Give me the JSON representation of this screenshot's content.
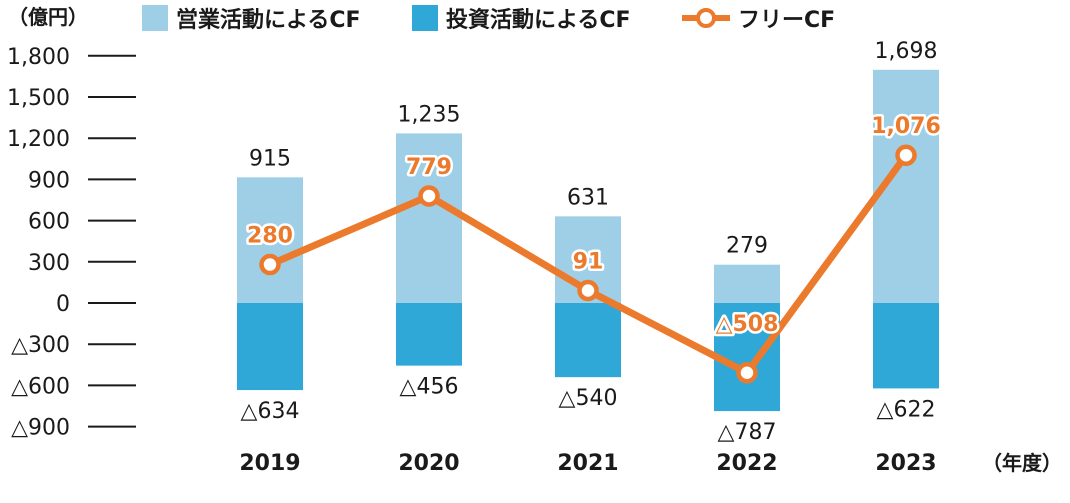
{
  "chart_data": {
    "type": "bar",
    "unit_label": "（億円）",
    "x_unit_label": "（年度）",
    "categories": [
      "2019",
      "2020",
      "2021",
      "2022",
      "2023"
    ],
    "y_ticks": [
      {
        "value": 1800,
        "label": "1,800"
      },
      {
        "value": 1500,
        "label": "1,500"
      },
      {
        "value": 1200,
        "label": "1,200"
      },
      {
        "value": 900,
        "label": "900"
      },
      {
        "value": 600,
        "label": "600"
      },
      {
        "value": 300,
        "label": "300"
      },
      {
        "value": 0,
        "label": "0"
      },
      {
        "value": -300,
        "label": "△300"
      },
      {
        "value": -600,
        "label": "△600"
      },
      {
        "value": -900,
        "label": "△900"
      }
    ],
    "ylim": [
      -900,
      1800
    ],
    "series": [
      {
        "name": "営業活動によるCF",
        "kind": "bar",
        "color": "#9fcfe7",
        "values": [
          915,
          1235,
          631,
          279,
          1698
        ],
        "labels": [
          "915",
          "1,235",
          "631",
          "279",
          "1,698"
        ]
      },
      {
        "name": "投資活動によるCF",
        "kind": "bar",
        "color": "#2fa8d8",
        "values": [
          -634,
          -456,
          -540,
          -787,
          -622
        ],
        "labels": [
          "△634",
          "△456",
          "△540",
          "△787",
          "△622"
        ]
      },
      {
        "name": "フリーCF",
        "kind": "line",
        "color": "#ec7a2c",
        "values": [
          280,
          779,
          91,
          -508,
          1076
        ],
        "labels": [
          "280",
          "779",
          "91",
          "△508",
          "1,076"
        ]
      }
    ],
    "legend_position": "top",
    "grid": false
  }
}
